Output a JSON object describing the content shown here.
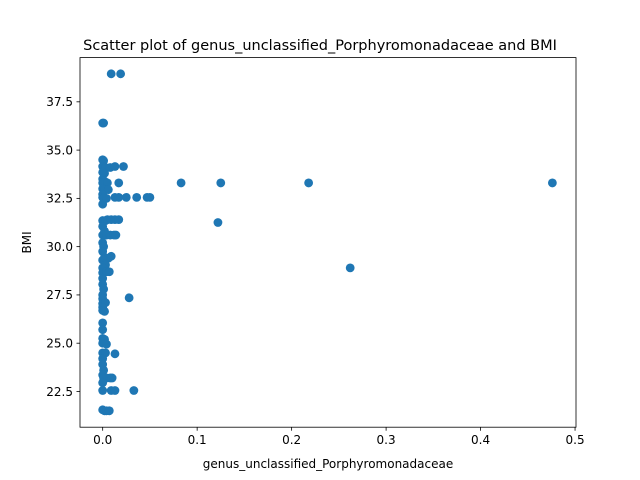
{
  "chart_data": {
    "type": "scatter",
    "title": "Scatter plot of genus_unclassified_Porphyromonadaceae and BMI",
    "xlabel": "genus_unclassified_Porphyromonadaceae",
    "ylabel": "BMI",
    "xlim": [
      -0.024,
      0.501
    ],
    "ylim": [
      20.65,
      39.79
    ],
    "xticks": [
      0.0,
      0.1,
      0.2,
      0.3,
      0.4,
      0.5
    ],
    "xtick_labels": [
      "0.0",
      "0.1",
      "0.2",
      "0.3",
      "0.4",
      "0.5"
    ],
    "yticks": [
      22.5,
      25.0,
      27.5,
      30.0,
      32.5,
      35.0,
      37.5
    ],
    "ytick_labels": [
      "22.5",
      "25.0",
      "27.5",
      "30.0",
      "32.5",
      "35.0",
      "37.5"
    ],
    "grid": false,
    "marker_color": "#1f77b4",
    "points": [
      [
        0.009,
        38.95
      ],
      [
        0.019,
        38.95
      ],
      [
        0.0,
        36.4
      ],
      [
        0.001,
        36.4
      ],
      [
        0.0,
        34.5
      ],
      [
        0.001,
        34.45
      ],
      [
        0.0,
        34.15
      ],
      [
        0.003,
        34.1
      ],
      [
        0.008,
        34.1
      ],
      [
        0.013,
        34.15
      ],
      [
        0.022,
        34.15
      ],
      [
        0.0,
        33.85
      ],
      [
        0.002,
        33.8
      ],
      [
        0.0,
        33.5
      ],
      [
        0.001,
        33.4
      ],
      [
        0.003,
        33.35
      ],
      [
        0.0,
        33.3
      ],
      [
        0.005,
        33.3
      ],
      [
        0.017,
        33.3
      ],
      [
        0.083,
        33.3
      ],
      [
        0.125,
        33.3
      ],
      [
        0.218,
        33.3
      ],
      [
        0.476,
        33.3
      ],
      [
        0.0,
        33.0
      ],
      [
        0.002,
        32.95
      ],
      [
        0.006,
        32.95
      ],
      [
        0.0,
        32.7
      ],
      [
        0.0,
        32.55
      ],
      [
        0.001,
        32.5
      ],
      [
        0.004,
        32.5
      ],
      [
        0.013,
        32.55
      ],
      [
        0.017,
        32.55
      ],
      [
        0.025,
        32.55
      ],
      [
        0.036,
        32.55
      ],
      [
        0.047,
        32.55
      ],
      [
        0.05,
        32.55
      ],
      [
        0.0,
        32.2
      ],
      [
        0.0,
        31.35
      ],
      [
        0.003,
        31.35
      ],
      [
        0.005,
        31.4
      ],
      [
        0.009,
        31.4
      ],
      [
        0.013,
        31.4
      ],
      [
        0.017,
        31.4
      ],
      [
        0.122,
        31.25
      ],
      [
        0.0,
        31.05
      ],
      [
        0.002,
        30.8
      ],
      [
        0.0,
        30.6
      ],
      [
        0.004,
        30.6
      ],
      [
        0.008,
        30.6
      ],
      [
        0.012,
        30.6
      ],
      [
        0.014,
        30.6
      ],
      [
        0.0,
        30.2
      ],
      [
        0.001,
        30.0
      ],
      [
        0.0,
        29.75
      ],
      [
        0.002,
        29.45
      ],
      [
        0.006,
        29.4
      ],
      [
        0.009,
        29.5
      ],
      [
        0.0,
        29.3
      ],
      [
        0.003,
        29.05
      ],
      [
        0.0,
        28.9
      ],
      [
        0.262,
        28.9
      ],
      [
        0.0,
        28.65
      ],
      [
        0.004,
        28.7
      ],
      [
        0.007,
        28.7
      ],
      [
        0.0,
        28.35
      ],
      [
        0.0,
        28.05
      ],
      [
        0.001,
        27.8
      ],
      [
        0.0,
        27.5
      ],
      [
        0.028,
        27.35
      ],
      [
        0.0,
        27.3
      ],
      [
        0.0,
        27.05
      ],
      [
        0.003,
        27.1
      ],
      [
        0.0,
        26.85
      ],
      [
        0.0,
        26.7
      ],
      [
        0.002,
        26.65
      ],
      [
        0.0,
        26.05
      ],
      [
        0.0,
        25.7
      ],
      [
        0.0,
        25.25
      ],
      [
        0.002,
        25.2
      ],
      [
        0.0,
        25.0
      ],
      [
        0.004,
        24.95
      ],
      [
        0.0,
        24.5
      ],
      [
        0.001,
        24.45
      ],
      [
        0.003,
        24.5
      ],
      [
        0.013,
        24.45
      ],
      [
        0.0,
        24.2
      ],
      [
        0.0,
        23.9
      ],
      [
        0.001,
        23.6
      ],
      [
        0.0,
        23.35
      ],
      [
        0.001,
        23.2
      ],
      [
        0.004,
        23.2
      ],
      [
        0.008,
        23.2
      ],
      [
        0.01,
        23.2
      ],
      [
        0.0,
        22.95
      ],
      [
        0.009,
        22.55
      ],
      [
        0.013,
        22.55
      ],
      [
        0.033,
        22.55
      ],
      [
        0.0,
        22.55
      ],
      [
        0.0,
        21.55
      ],
      [
        0.002,
        21.5
      ],
      [
        0.004,
        21.5
      ],
      [
        0.007,
        21.5
      ]
    ]
  }
}
